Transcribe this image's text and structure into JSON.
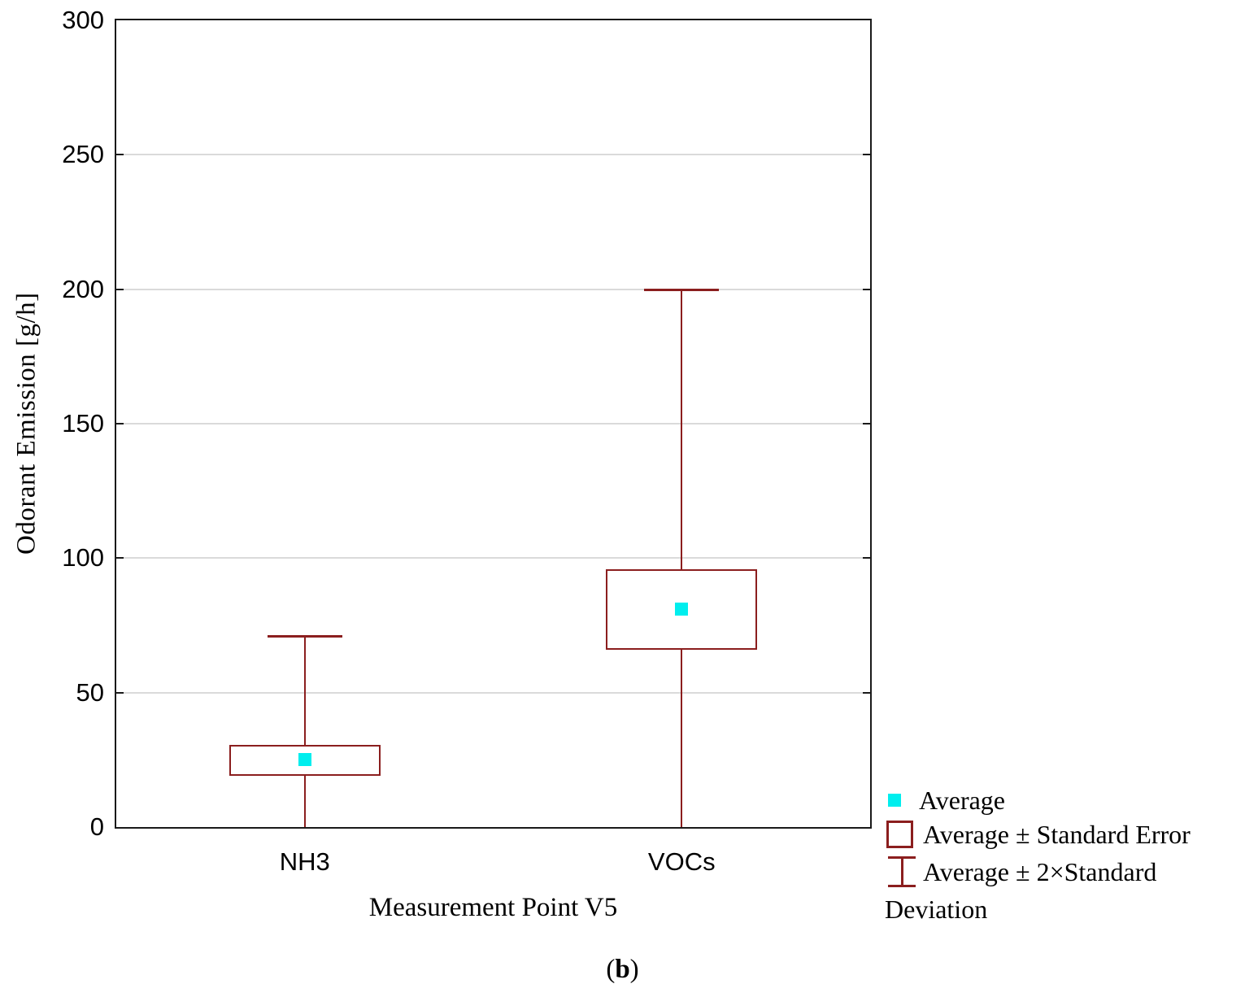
{
  "chart_data": {
    "type": "boxplot",
    "title": "",
    "xlabel": "Measurement Point V5",
    "ylabel": "Odorant Emission [g/h]",
    "ylim": [
      0,
      300
    ],
    "yticks": [
      0,
      50,
      100,
      150,
      200,
      250,
      300
    ],
    "grid": true,
    "categories": [
      "NH3",
      "VOCs"
    ],
    "series": [
      {
        "label": "NH3",
        "average": 25,
        "box_low": 19,
        "box_high": 30.5,
        "whisker_high": 71,
        "whisker_low": 0,
        "whisker_high_capped": true,
        "whisker_low_capped": false
      },
      {
        "label": "VOCs",
        "average": 81,
        "box_low": 66,
        "box_high": 96,
        "whisker_high": 200,
        "whisker_low": 0,
        "whisker_high_capped": true,
        "whisker_low_capped": false
      }
    ],
    "legend_entries": [
      {
        "marker": "filled-square",
        "label": "Average"
      },
      {
        "marker": "box-outline",
        "label": "Average ± Standard Error"
      },
      {
        "marker": "whisker",
        "label": "Average ± 2×Standard Deviation"
      }
    ],
    "legend_position": "bottom-right",
    "colors": {
      "average_marker": "#00eeee",
      "box_and_whisker": "#8b1e1e",
      "gridline": "#dadada",
      "axis": "#1a1a1a"
    }
  },
  "legend_display": {
    "line1": "Average",
    "line2": "Average ± Standard Error",
    "line3": "Average ± 2×Standard",
    "line4": "Deviation"
  },
  "caption": {
    "open": "(",
    "letter": "b",
    "close": ")"
  }
}
